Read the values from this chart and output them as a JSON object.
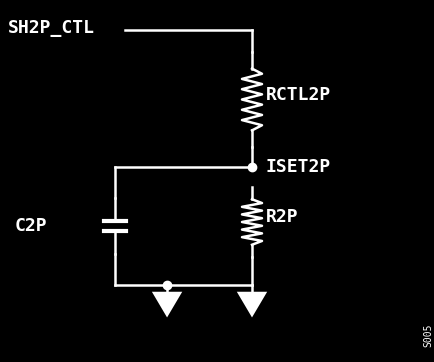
{
  "bg_color": "#000000",
  "line_color": "#ffffff",
  "text_color": "#ffffff",
  "labels": {
    "sh2p_ctl": "SH2P_CTL",
    "rctl2p": "RCTL2P",
    "iset2p": "ISET2P",
    "c2p": "C2P",
    "r2p": "R2P",
    "corner": "S005"
  },
  "figsize": [
    4.35,
    3.62
  ],
  "dpi": 100
}
